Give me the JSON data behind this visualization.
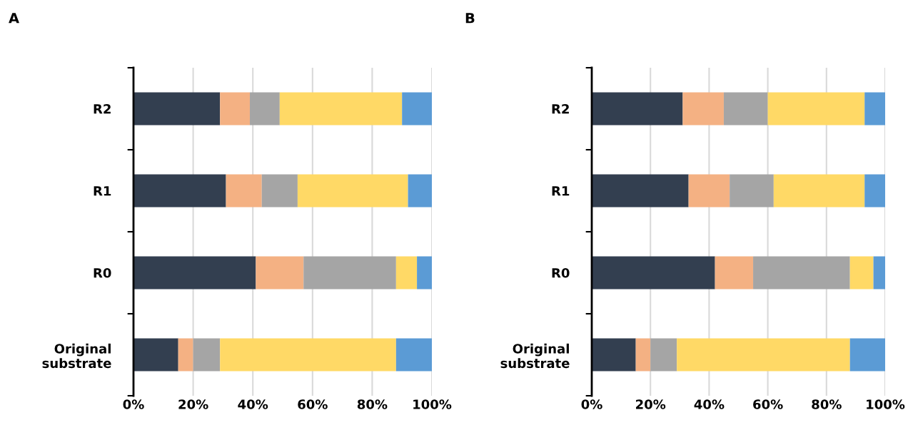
{
  "chart_data": [
    {
      "type": "bar",
      "title": "A",
      "orientation": "horizontal",
      "stacked": true,
      "categories": [
        "R2",
        "R1",
        "R0",
        "Original\nsubstrate"
      ],
      "xlim": [
        0,
        100
      ],
      "xticks": [
        {
          "value": 0,
          "label": "0%"
        },
        {
          "value": 20,
          "label": "20%"
        },
        {
          "value": 40,
          "label": "40%"
        },
        {
          "value": 60,
          "label": "60%"
        },
        {
          "value": 80,
          "label": "80%"
        },
        {
          "value": 100,
          "label": "100%"
        }
      ],
      "grid": "x",
      "legend": false,
      "series": [
        {
          "color": "#333f50",
          "values": [
            29,
            31,
            41,
            15
          ]
        },
        {
          "color": "#f4b183",
          "values": [
            10,
            12,
            16,
            5
          ]
        },
        {
          "color": "#a5a5a5",
          "values": [
            10,
            12,
            31,
            9
          ]
        },
        {
          "color": "#ffd966",
          "values": [
            41,
            37,
            7,
            59
          ]
        },
        {
          "color": "#5b9bd5",
          "values": [
            10,
            8,
            5,
            12
          ]
        }
      ]
    },
    {
      "type": "bar",
      "title": "B",
      "orientation": "horizontal",
      "stacked": true,
      "categories": [
        "R2",
        "R1",
        "R0",
        "Original\nsubstrate"
      ],
      "xlim": [
        0,
        100
      ],
      "xticks": [
        {
          "value": 0,
          "label": "0%"
        },
        {
          "value": 20,
          "label": "20%"
        },
        {
          "value": 40,
          "label": "40%"
        },
        {
          "value": 60,
          "label": "60%"
        },
        {
          "value": 80,
          "label": "80%"
        },
        {
          "value": 100,
          "label": "100%"
        }
      ],
      "grid": "x",
      "legend": false,
      "series": [
        {
          "color": "#333f50",
          "values": [
            31,
            33,
            42,
            15
          ]
        },
        {
          "color": "#f4b183",
          "values": [
            14,
            14,
            13,
            5
          ]
        },
        {
          "color": "#a5a5a5",
          "values": [
            15,
            15,
            33,
            9
          ]
        },
        {
          "color": "#ffd966",
          "values": [
            33,
            31,
            8,
            59
          ]
        },
        {
          "color": "#5b9bd5",
          "values": [
            7,
            7,
            4,
            12
          ]
        }
      ]
    }
  ]
}
